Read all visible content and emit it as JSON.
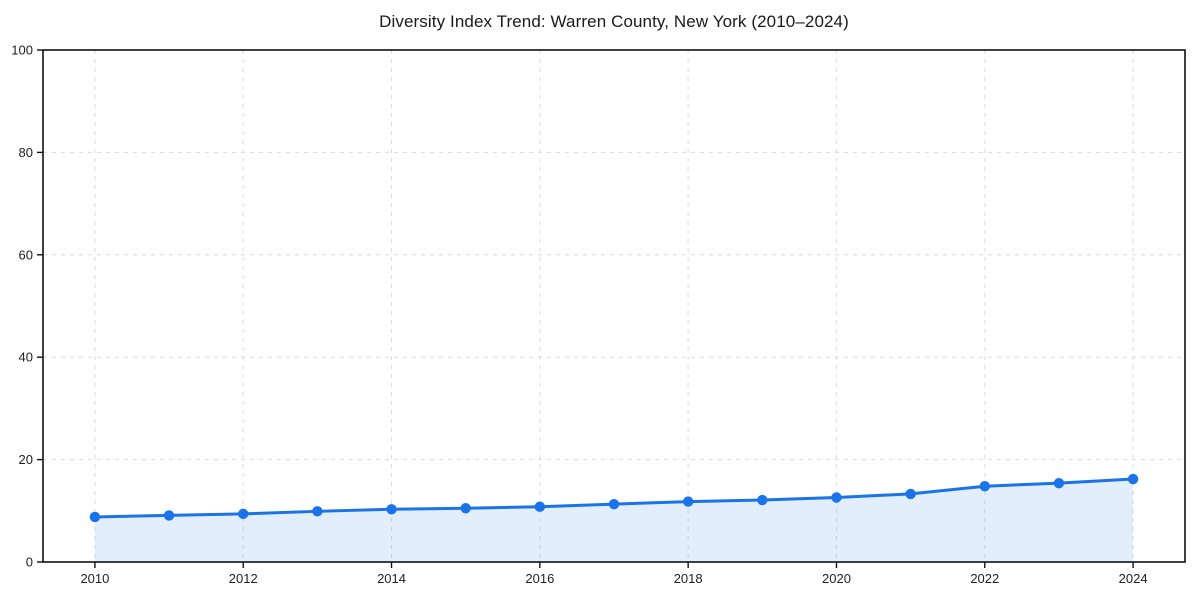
{
  "chart_data": {
    "type": "line",
    "title": "Diversity Index Trend: Warren County, New York (2010–2024)",
    "xlabel": "",
    "ylabel": "",
    "x": [
      2010,
      2011,
      2012,
      2013,
      2014,
      2015,
      2016,
      2017,
      2018,
      2019,
      2020,
      2021,
      2022,
      2023,
      2024
    ],
    "series": [
      {
        "name": "Diversity Index",
        "values": [
          8.8,
          9.1,
          9.4,
          9.9,
          10.3,
          10.5,
          10.8,
          11.3,
          11.8,
          12.1,
          12.6,
          13.3,
          14.8,
          15.4,
          16.2
        ]
      }
    ],
    "xlim": [
      2009.3,
      2024.7
    ],
    "ylim": [
      0,
      100
    ],
    "xticks": [
      2010,
      2012,
      2014,
      2016,
      2018,
      2020,
      2022,
      2024
    ],
    "yticks": [
      0,
      20,
      40,
      60,
      80,
      100
    ],
    "grid": true,
    "grid_style": "dashed",
    "legend": "none",
    "colors": {
      "line": "#1a73e8",
      "marker": "#1a73e8",
      "area_fill": "rgba(26,115,232,0.12)",
      "gridline": "#dcdcdc",
      "spine": "#111111",
      "tick_label": "#1f1f1f",
      "title": "#1a1a1a",
      "background": "#ffffff"
    }
  }
}
